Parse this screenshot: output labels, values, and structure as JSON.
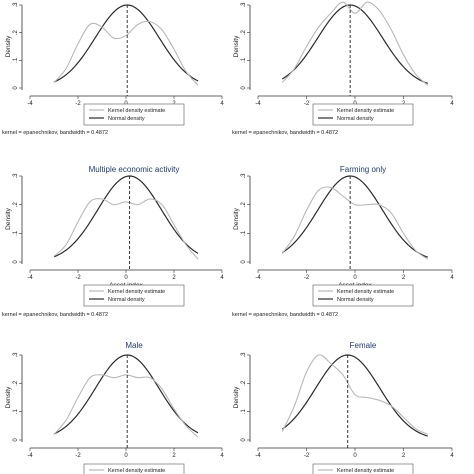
{
  "chart_data": [
    {
      "type": "line",
      "title": "",
      "xlabel": "Asset index",
      "ylabel": "Density",
      "xlim": [
        -4,
        4
      ],
      "ylim": [
        0,
        0.3
      ],
      "x_ticks": [
        "-4",
        "-2",
        "0",
        "2",
        "4"
      ],
      "y_ticks": [
        "0",
        ".1",
        ".2",
        ".3"
      ],
      "mean_line": 0.05,
      "normal": {
        "mean": 0.05,
        "sd": 1.33
      },
      "kernel": {
        "x": [
          -3.0,
          -2.5,
          -2.0,
          -1.5,
          -1.0,
          -0.5,
          0.0,
          0.5,
          1.0,
          1.5,
          2.0,
          2.5,
          3.0
        ],
        "y": [
          0.02,
          0.07,
          0.16,
          0.23,
          0.22,
          0.18,
          0.19,
          0.23,
          0.24,
          0.21,
          0.14,
          0.06,
          0.01
        ]
      },
      "legend": [
        "Kernel density estimate",
        "Normal density"
      ],
      "note": "kernel = epanechnikov, bandwidth = 0.4872"
    },
    {
      "type": "line",
      "title": "",
      "xlabel": "Asset index",
      "ylabel": "Density",
      "xlim": [
        -4,
        4
      ],
      "ylim": [
        0,
        0.3
      ],
      "x_ticks": [
        "-4",
        "-2",
        "0",
        "2",
        "4"
      ],
      "y_ticks": [
        "0",
        ".1",
        ".2",
        ".3"
      ],
      "mean_line": -0.2,
      "normal": {
        "mean": -0.2,
        "sd": 1.33
      },
      "kernel": {
        "x": [
          -3.0,
          -2.5,
          -2.0,
          -1.5,
          -1.0,
          -0.5,
          0.0,
          0.5,
          1.0,
          1.5,
          2.0,
          2.5,
          3.0
        ],
        "y": [
          0.02,
          0.07,
          0.15,
          0.22,
          0.27,
          0.31,
          0.27,
          0.31,
          0.28,
          0.21,
          0.12,
          0.05,
          0.01
        ]
      },
      "legend": [
        "Kernel density estimate",
        "Normal density"
      ],
      "note": "kernel = epanechnikov, bandwidth = 0.4872"
    },
    {
      "type": "line",
      "title": "Multiple economic activity",
      "xlabel": "Asset index",
      "ylabel": "Density",
      "xlim": [
        -4,
        4
      ],
      "ylim": [
        0,
        0.3
      ],
      "x_ticks": [
        "-4",
        "-2",
        "0",
        "2",
        "4"
      ],
      "y_ticks": [
        "0",
        ".1",
        ".2",
        ".3"
      ],
      "mean_line": 0.15,
      "normal": {
        "mean": 0.15,
        "sd": 1.33
      },
      "kernel": {
        "x": [
          -3.0,
          -2.5,
          -2.0,
          -1.5,
          -1.0,
          -0.5,
          0.0,
          0.5,
          1.0,
          1.5,
          2.0,
          2.5,
          3.0
        ],
        "y": [
          0.02,
          0.06,
          0.14,
          0.21,
          0.22,
          0.2,
          0.21,
          0.2,
          0.22,
          0.2,
          0.13,
          0.06,
          0.01
        ]
      },
      "legend": [
        "Kernel density estimate",
        "Normal density"
      ],
      "note": "kernel = epanechnikov, bandwidth = 0.4872"
    },
    {
      "type": "line",
      "title": "Farming only",
      "xlabel": "Asset index",
      "ylabel": "Density",
      "xlim": [
        -4,
        4
      ],
      "ylim": [
        0,
        0.3
      ],
      "x_ticks": [
        "-4",
        "-2",
        "0",
        "2",
        "4"
      ],
      "y_ticks": [
        "0",
        ".1",
        ".2",
        ".3"
      ],
      "mean_line": -0.2,
      "normal": {
        "mean": -0.2,
        "sd": 1.33
      },
      "kernel": {
        "x": [
          -3.0,
          -2.5,
          -2.0,
          -1.5,
          -1.0,
          -0.5,
          0.0,
          0.5,
          1.0,
          1.5,
          2.0,
          2.5,
          3.0
        ],
        "y": [
          0.03,
          0.09,
          0.18,
          0.25,
          0.26,
          0.23,
          0.2,
          0.2,
          0.2,
          0.17,
          0.1,
          0.04,
          0.01
        ]
      },
      "legend": [
        "Kernel density estimate",
        "Normal density"
      ],
      "note": "kernel = epanechnikov, bandwidth = 0.4872"
    },
    {
      "type": "line",
      "title": "Male",
      "xlabel": "",
      "ylabel": "Density",
      "xlim": [
        -4,
        4
      ],
      "ylim": [
        0,
        0.3
      ],
      "x_ticks": [
        "-4",
        "-2",
        "0",
        "2",
        "4"
      ],
      "y_ticks": [
        "0",
        ".1",
        ".2",
        ".3"
      ],
      "mean_line": 0.05,
      "normal": {
        "mean": 0.05,
        "sd": 1.33
      },
      "kernel": {
        "x": [
          -3.0,
          -2.5,
          -2.0,
          -1.5,
          -1.0,
          -0.5,
          0.0,
          0.5,
          1.0,
          1.5,
          2.0,
          2.5,
          3.0
        ],
        "y": [
          0.02,
          0.07,
          0.15,
          0.22,
          0.23,
          0.22,
          0.23,
          0.22,
          0.22,
          0.18,
          0.11,
          0.05,
          0.01
        ]
      },
      "legend": [
        "Kernel density estimate"
      ],
      "note": ""
    },
    {
      "type": "line",
      "title": "Female",
      "xlabel": "",
      "ylabel": "Density",
      "xlim": [
        -4,
        4
      ],
      "ylim": [
        0,
        0.3
      ],
      "x_ticks": [
        "-4",
        "-2",
        "0",
        "2",
        "4"
      ],
      "y_ticks": [
        "0",
        ".1",
        ".2",
        ".3"
      ],
      "mean_line": -0.3,
      "normal": {
        "mean": -0.3,
        "sd": 1.33
      },
      "kernel": {
        "x": [
          -3.0,
          -2.5,
          -2.0,
          -1.5,
          -1.0,
          -0.5,
          0.0,
          0.5,
          1.0,
          1.5,
          2.0,
          2.5,
          3.0
        ],
        "y": [
          0.03,
          0.12,
          0.24,
          0.3,
          0.27,
          0.23,
          0.16,
          0.15,
          0.14,
          0.12,
          0.08,
          0.04,
          0.02
        ]
      },
      "legend": [
        "Kernel density estimate"
      ],
      "note": ""
    }
  ]
}
